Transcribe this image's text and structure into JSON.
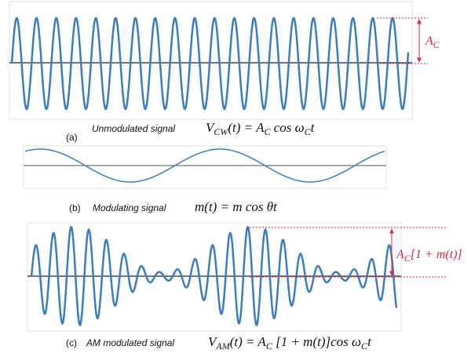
{
  "panels": [
    {
      "label": "(a)",
      "caption": "Unmodulated signal",
      "formula": [
        {
          "text": "V"
        },
        {
          "sub": "CW"
        },
        {
          "text": "(t) = A"
        },
        {
          "sub": "C"
        },
        {
          "text": " cos ω"
        },
        {
          "sub": "C"
        },
        {
          "text": "t"
        }
      ],
      "annotation": [
        {
          "text": "A"
        },
        {
          "sub": "C"
        }
      ]
    },
    {
      "label": "(b)",
      "caption": "Modulating signal",
      "formula": [
        {
          "text": "m(t) = m cos θt"
        }
      ]
    },
    {
      "label": "(c)",
      "caption": "AM modulated signal",
      "formula": [
        {
          "text": "V"
        },
        {
          "sub": "AM"
        },
        {
          "text": "(t) = A"
        },
        {
          "sub": "C"
        },
        {
          "text": " [1 + m(t)]cos ω"
        },
        {
          "sub": "C"
        },
        {
          "text": "t"
        }
      ],
      "annotation": [
        {
          "text": "A"
        },
        {
          "sub": "C"
        },
        {
          "text": "[1 + m(t)]"
        }
      ]
    }
  ]
}
